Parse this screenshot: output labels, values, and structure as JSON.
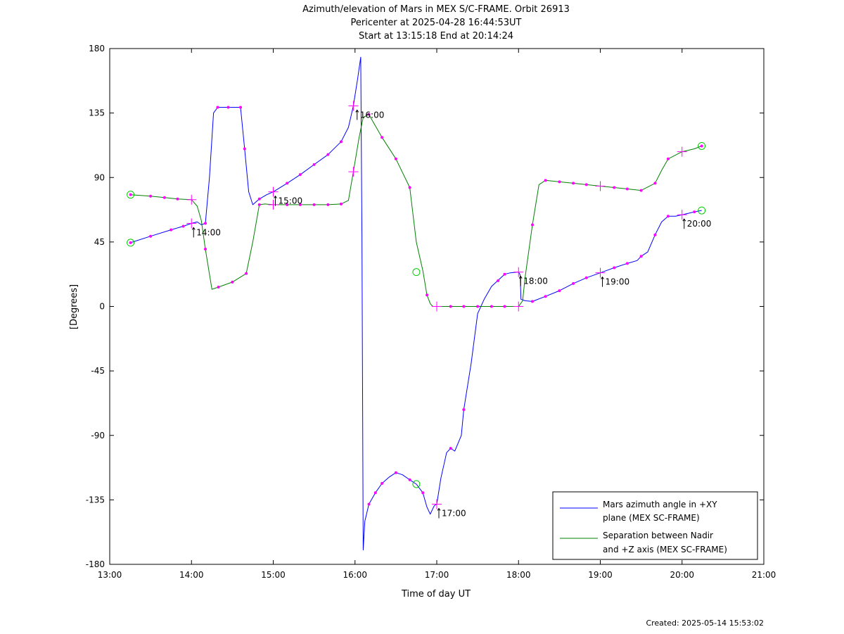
{
  "chart_data": {
    "type": "line",
    "title": [
      "Azimuth/elevation of Mars in MEX S/C-FRAME.  Orbit 26913",
      "Pericenter at 2025-04-28 16:44:53UT",
      "Start at 13:15:18 End at 20:14:24"
    ],
    "xlabel": "Time of day UT",
    "ylabel": "[Degrees]",
    "xlim": [
      "13:00",
      "21:00"
    ],
    "ylim": [
      -180,
      180
    ],
    "x_ticks": [
      "13:00",
      "14:00",
      "15:00",
      "16:00",
      "17:00",
      "18:00",
      "19:00",
      "20:00",
      "21:00"
    ],
    "y_ticks": [
      "180",
      "135",
      "90",
      "45",
      "0",
      "-45",
      "-90",
      "-135",
      "-180"
    ],
    "grid": false,
    "legend_position": "bottom-right",
    "series": [
      {
        "name": "Mars azimuth angle in +XY plane (MEX SC-FRAME)",
        "legend_lines": [
          "Mars azimuth angle in +XY",
          "plane (MEX SC-FRAME)"
        ],
        "color": "#0000ff",
        "segments": [
          [
            [
              13.255,
              44.5
            ],
            [
              13.5,
              49
            ],
            [
              13.75,
              53.5
            ],
            [
              13.9,
              56
            ],
            [
              14.0,
              58
            ],
            [
              14.07,
              59
            ],
            [
              14.12,
              57
            ],
            [
              14.17,
              58
            ],
            [
              14.22,
              90
            ],
            [
              14.27,
              135
            ],
            [
              14.32,
              139
            ],
            [
              14.45,
              139
            ],
            [
              14.6,
              139
            ],
            [
              14.65,
              110
            ],
            [
              14.7,
              80
            ],
            [
              14.75,
              71
            ],
            [
              14.83,
              75
            ],
            [
              14.92,
              78
            ],
            [
              15.0,
              80
            ],
            [
              15.17,
              86
            ],
            [
              15.33,
              92
            ],
            [
              15.5,
              99
            ],
            [
              15.67,
              106
            ],
            [
              15.83,
              115
            ],
            [
              15.92,
              125
            ],
            [
              15.98,
              140
            ],
            [
              16.03,
              158
            ],
            [
              16.07,
              174
            ],
            [
              16.085,
              50
            ],
            [
              16.1,
              -170
            ],
            [
              16.12,
              -150
            ],
            [
              16.17,
              -138
            ],
            [
              16.25,
              -130
            ],
            [
              16.33,
              -123.5
            ],
            [
              16.42,
              -119
            ],
            [
              16.5,
              -116
            ],
            [
              16.58,
              -117.5
            ],
            [
              16.67,
              -121
            ],
            [
              16.75,
              -124
            ],
            [
              16.83,
              -130
            ],
            [
              16.88,
              -140
            ],
            [
              16.92,
              -145
            ],
            [
              16.97,
              -139
            ],
            [
              17.0,
              -138
            ],
            [
              17.05,
              -120
            ],
            [
              17.12,
              -102
            ],
            [
              17.17,
              -99
            ],
            [
              17.22,
              -101
            ],
            [
              17.3,
              -90
            ],
            [
              17.33,
              -72
            ],
            [
              17.42,
              -40
            ],
            [
              17.5,
              -5
            ],
            [
              17.58,
              5
            ],
            [
              17.67,
              14
            ],
            [
              17.83,
              22.5
            ],
            [
              17.9,
              23.5
            ],
            [
              18.0,
              24
            ],
            [
              18.02,
              22
            ],
            [
              18.03,
              5
            ],
            [
              18.08,
              4
            ],
            [
              18.17,
              3.5
            ],
            [
              18.33,
              7
            ],
            [
              18.5,
              11
            ],
            [
              18.67,
              16
            ],
            [
              18.83,
              20
            ],
            [
              19.0,
              23.5
            ],
            [
              19.17,
              27
            ],
            [
              19.33,
              30
            ],
            [
              19.45,
              32
            ],
            [
              19.5,
              35
            ],
            [
              19.58,
              38
            ],
            [
              19.67,
              50
            ],
            [
              19.75,
              59
            ],
            [
              19.83,
              63
            ],
            [
              19.92,
              63
            ],
            [
              20.0,
              64
            ],
            [
              20.15,
              66
            ],
            [
              20.24,
              67
            ]
          ]
        ]
      },
      {
        "name": "Separation between Nadir and +Z axis (MEX SC-FRAME)",
        "legend_lines": [
          "Separation between Nadir",
          "and +Z axis (MEX SC-FRAME)"
        ],
        "color": "#008000",
        "segments": [
          [
            [
              13.255,
              78
            ],
            [
              13.5,
              77
            ],
            [
              13.67,
              76
            ],
            [
              13.83,
              75
            ],
            [
              14.0,
              74.5
            ],
            [
              14.07,
              70
            ],
            [
              14.12,
              60
            ],
            [
              14.17,
              40
            ],
            [
              14.25,
              12
            ],
            [
              14.33,
              13.5
            ],
            [
              14.5,
              17
            ],
            [
              14.67,
              23
            ],
            [
              14.75,
              45
            ],
            [
              14.83,
              71
            ],
            [
              14.9,
              71.5
            ],
            [
              15.0,
              71
            ],
            [
              15.17,
              71
            ],
            [
              15.33,
              71
            ],
            [
              15.5,
              71
            ],
            [
              15.67,
              71
            ],
            [
              15.83,
              71.5
            ],
            [
              15.92,
              74
            ],
            [
              15.98,
              94
            ],
            [
              16.05,
              118
            ],
            [
              16.1,
              132
            ],
            [
              16.17,
              134
            ],
            [
              16.25,
              126
            ],
            [
              16.33,
              118
            ],
            [
              16.5,
              103
            ],
            [
              16.67,
              83
            ],
            [
              16.75,
              45
            ],
            [
              16.83,
              25
            ],
            [
              16.88,
              8
            ],
            [
              16.92,
              2
            ],
            [
              16.95,
              0
            ],
            [
              17.0,
              0
            ],
            [
              17.17,
              0
            ],
            [
              17.33,
              0
            ],
            [
              17.5,
              0
            ],
            [
              17.67,
              0
            ],
            [
              17.83,
              0
            ],
            [
              18.0,
              0
            ],
            [
              18.05,
              4
            ],
            [
              18.08,
              20
            ],
            [
              18.17,
              57
            ],
            [
              18.25,
              85
            ],
            [
              18.33,
              88
            ],
            [
              18.5,
              87
            ],
            [
              18.67,
              86
            ],
            [
              18.83,
              85
            ],
            [
              19.0,
              84
            ],
            [
              19.17,
              83
            ],
            [
              19.33,
              82
            ],
            [
              19.5,
              81
            ],
            [
              19.67,
              86
            ],
            [
              19.75,
              95
            ],
            [
              19.83,
              103
            ],
            [
              20.0,
              108
            ],
            [
              20.15,
              110
            ],
            [
              20.24,
              112
            ]
          ]
        ]
      }
    ],
    "markers": {
      "dot_color": "#ff00ff",
      "dots": [
        [
          13.255,
          44.5
        ],
        [
          13.5,
          49
        ],
        [
          13.75,
          53.5
        ],
        [
          13.9,
          56
        ],
        [
          14.17,
          58
        ],
        [
          14.32,
          139
        ],
        [
          14.45,
          139
        ],
        [
          14.6,
          139
        ],
        [
          14.65,
          110
        ],
        [
          14.83,
          75
        ],
        [
          15.17,
          86
        ],
        [
          15.33,
          92
        ],
        [
          15.5,
          99
        ],
        [
          15.67,
          106
        ],
        [
          15.83,
          115
        ],
        [
          16.17,
          -138
        ],
        [
          16.25,
          -130
        ],
        [
          16.33,
          -123.5
        ],
        [
          16.5,
          -116
        ],
        [
          16.67,
          -121
        ],
        [
          16.83,
          -130
        ],
        [
          17.17,
          -99
        ],
        [
          17.33,
          -72
        ],
        [
          17.75,
          18
        ],
        [
          17.83,
          22.5
        ],
        [
          18.17,
          3.5
        ],
        [
          18.33,
          7
        ],
        [
          18.5,
          11
        ],
        [
          18.67,
          16
        ],
        [
          18.83,
          20
        ],
        [
          19.17,
          27
        ],
        [
          19.33,
          30
        ],
        [
          19.5,
          35
        ],
        [
          19.67,
          50
        ],
        [
          19.83,
          63
        ],
        [
          20.15,
          66
        ],
        [
          13.255,
          78
        ],
        [
          13.5,
          77
        ],
        [
          13.67,
          76
        ],
        [
          13.83,
          75
        ],
        [
          14.17,
          40
        ],
        [
          14.33,
          13.5
        ],
        [
          14.5,
          17
        ],
        [
          14.67,
          23
        ],
        [
          14.83,
          71
        ],
        [
          15.17,
          71
        ],
        [
          15.33,
          71
        ],
        [
          15.5,
          71
        ],
        [
          15.67,
          71
        ],
        [
          15.83,
          71.5
        ],
        [
          16.17,
          134
        ],
        [
          16.33,
          118
        ],
        [
          16.5,
          103
        ],
        [
          16.67,
          83
        ],
        [
          16.88,
          8
        ],
        [
          17.17,
          0
        ],
        [
          17.33,
          0
        ],
        [
          17.5,
          0
        ],
        [
          17.67,
          0
        ],
        [
          17.83,
          0
        ],
        [
          18.17,
          57
        ],
        [
          18.33,
          88
        ],
        [
          18.5,
          87
        ],
        [
          18.67,
          86
        ],
        [
          18.83,
          85
        ],
        [
          19.17,
          83
        ],
        [
          19.33,
          82
        ],
        [
          19.5,
          81
        ],
        [
          19.67,
          86
        ],
        [
          19.83,
          103
        ],
        [
          20.24,
          112
        ]
      ],
      "cross_points": [
        [
          14.0,
          58
        ],
        [
          14.0,
          74.5
        ],
        [
          15.0,
          80
        ],
        [
          15.0,
          71
        ],
        [
          15.98,
          140
        ],
        [
          15.98,
          94
        ],
        [
          17.0,
          -138
        ],
        [
          17.0,
          0
        ],
        [
          18.0,
          24
        ],
        [
          18.0,
          0
        ],
        [
          19.0,
          23.5
        ],
        [
          19.0,
          84
        ],
        [
          20.0,
          64
        ],
        [
          20.0,
          108
        ]
      ],
      "circle_color": "#00cc00",
      "circle_points": [
        [
          13.255,
          44.5
        ],
        [
          13.255,
          78
        ],
        [
          16.75,
          -124
        ],
        [
          16.75,
          24
        ],
        [
          20.24,
          67
        ],
        [
          20.24,
          112
        ]
      ]
    },
    "annotations": [
      {
        "text": "14:00",
        "x": 14.0,
        "y": 58
      },
      {
        "text": "15:00",
        "x": 15.0,
        "y": 80
      },
      {
        "text": "16:00",
        "x": 16.0,
        "y": 140
      },
      {
        "text": "17:00",
        "x": 17.0,
        "y": -138
      },
      {
        "text": "18:00",
        "x": 18.0,
        "y": 24
      },
      {
        "text": "19:00",
        "x": 19.0,
        "y": 23.5
      },
      {
        "text": "20:00",
        "x": 20.0,
        "y": 64
      }
    ],
    "footer": "Created: 2025-05-14 15:53:02"
  }
}
